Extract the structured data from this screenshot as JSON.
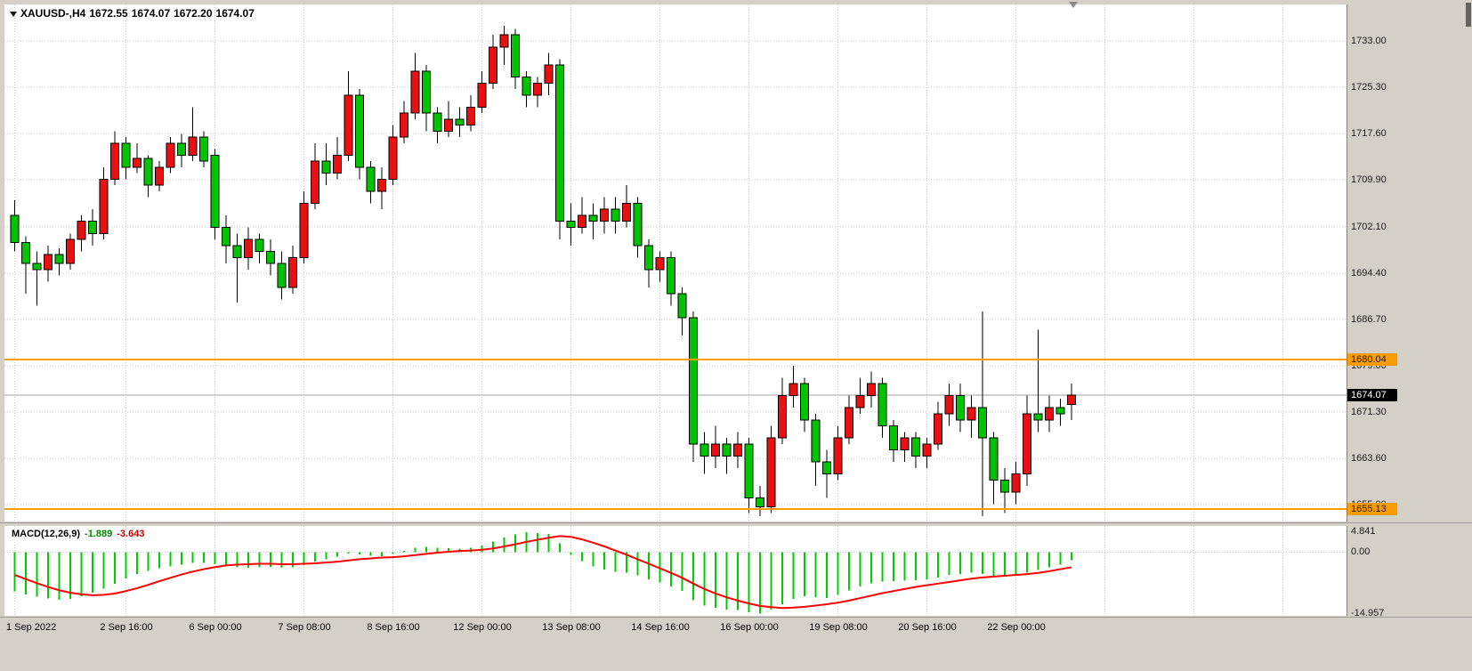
{
  "window": {
    "bg": "#d4d0c8"
  },
  "header": {
    "symbol_period": "XAUUSD-,H4",
    "open": "1672.55",
    "high": "1674.07",
    "low": "1672.20",
    "close": "1674.07"
  },
  "price_axis": {
    "tick_labels": [
      "1733.00",
      "1725.30",
      "1717.60",
      "1709.90",
      "1702.10",
      "1694.40",
      "1686.70",
      "1679.00",
      "1671.30",
      "1663.60",
      "1655.90"
    ],
    "levels": [
      {
        "text": "1680.04",
        "price": 1680.04
      },
      {
        "text": "1655.13",
        "price": 1655.13
      }
    ],
    "bid_tag": {
      "text": "1674.07",
      "price": 1674.07
    },
    "level_color": "#ff9c00"
  },
  "time_axis": {
    "labels": [
      {
        "text": "1 Sep 2022",
        "index": 0
      },
      {
        "text": "2 Sep 16:00",
        "index": 10
      },
      {
        "text": "6 Sep 00:00",
        "index": 18
      },
      {
        "text": "7 Sep 08:00",
        "index": 26
      },
      {
        "text": "8 Sep 16:00",
        "index": 34
      },
      {
        "text": "12 Sep 00:00",
        "index": 42
      },
      {
        "text": "13 Sep 08:00",
        "index": 50
      },
      {
        "text": "14 Sep 16:00",
        "index": 58
      },
      {
        "text": "16 Sep 00:00",
        "index": 66
      },
      {
        "text": "19 Sep 08:00",
        "index": 74
      },
      {
        "text": "20 Sep 16:00",
        "index": 82
      },
      {
        "text": "22 Sep 00:00",
        "index": 90
      }
    ]
  },
  "macd_panel": {
    "title": "MACD(12,26,9)",
    "main_value": "-1.889",
    "signal_value": "-3.643",
    "axis_labels": [
      "4.841",
      "0.00",
      "-14.957"
    ]
  },
  "chart_data": {
    "type": "candlestick",
    "symbol": "XAUUSD-",
    "timeframe": "H4",
    "title": "XAUUSD- H4 with MACD(12,26,9)",
    "bull_color": "#e81010",
    "bear_color": "#00c400",
    "wick_color": "#000000",
    "grid_color": "#c9c9c9",
    "bid_price": 1674.07,
    "bid_line_color": "#a0a0a0",
    "hlines": [
      1680.04,
      1655.13
    ],
    "y_ticks": [
      1733.0,
      1725.3,
      1717.6,
      1709.9,
      1702.1,
      1694.4,
      1686.7,
      1679.0,
      1671.3,
      1663.6,
      1655.9
    ],
    "last_ohlc": {
      "open": 1672.55,
      "high": 1674.07,
      "low": 1672.2,
      "close": 1674.07
    },
    "candles": [
      [
        1704,
        1706.5,
        1698,
        1699.5
      ],
      [
        1699.5,
        1700.5,
        1691,
        1696
      ],
      [
        1696,
        1698,
        1689,
        1695
      ],
      [
        1695,
        1699,
        1693,
        1697.5
      ],
      [
        1697.5,
        1698.5,
        1694,
        1696
      ],
      [
        1696,
        1701,
        1695,
        1700
      ],
      [
        1700,
        1704,
        1698,
        1703
      ],
      [
        1703,
        1705,
        1699,
        1701
      ],
      [
        1701,
        1712,
        1700,
        1710
      ],
      [
        1710,
        1718,
        1709,
        1716
      ],
      [
        1716,
        1717,
        1710,
        1712
      ],
      [
        1712,
        1716,
        1711,
        1713.5
      ],
      [
        1713.5,
        1714,
        1707,
        1709
      ],
      [
        1709,
        1713,
        1708,
        1712
      ],
      [
        1712,
        1717,
        1711,
        1716
      ],
      [
        1716,
        1717.5,
        1712,
        1714
      ],
      [
        1714,
        1722,
        1713,
        1717
      ],
      [
        1717,
        1718,
        1712,
        1713
      ],
      [
        1714,
        1715,
        1700,
        1702
      ],
      [
        1702,
        1704,
        1696,
        1699
      ],
      [
        1699,
        1701,
        1689.5,
        1697
      ],
      [
        1697,
        1702,
        1695,
        1700
      ],
      [
        1700,
        1701,
        1696,
        1698
      ],
      [
        1698,
        1700,
        1694,
        1696
      ],
      [
        1696,
        1698,
        1690,
        1692
      ],
      [
        1692,
        1699,
        1691,
        1697
      ],
      [
        1697,
        1708,
        1696,
        1706
      ],
      [
        1706,
        1716,
        1705,
        1713
      ],
      [
        1713,
        1716,
        1709,
        1711
      ],
      [
        1711,
        1717,
        1710,
        1714
      ],
      [
        1714,
        1728,
        1713,
        1724
      ],
      [
        1724,
        1725,
        1710,
        1712
      ],
      [
        1712,
        1713,
        1706,
        1708
      ],
      [
        1708,
        1712,
        1705,
        1710
      ],
      [
        1710,
        1719,
        1709,
        1717
      ],
      [
        1717,
        1723,
        1716,
        1721
      ],
      [
        1721,
        1731,
        1720,
        1728
      ],
      [
        1728,
        1729,
        1718,
        1721
      ],
      [
        1721,
        1722,
        1716,
        1718
      ],
      [
        1718,
        1723,
        1717,
        1720
      ],
      [
        1720,
        1722,
        1717,
        1719
      ],
      [
        1719,
        1724,
        1718,
        1722
      ],
      [
        1722,
        1728,
        1721,
        1726
      ],
      [
        1726,
        1734,
        1725,
        1732
      ],
      [
        1732,
        1735.5,
        1729,
        1734
      ],
      [
        1734,
        1735,
        1725,
        1727
      ],
      [
        1727,
        1728,
        1722,
        1724
      ],
      [
        1724,
        1727,
        1722,
        1726
      ],
      [
        1726,
        1731,
        1724,
        1729
      ],
      [
        1729,
        1730,
        1700,
        1703
      ],
      [
        1703,
        1706,
        1699,
        1702
      ],
      [
        1702,
        1707,
        1701,
        1704
      ],
      [
        1704,
        1706,
        1700,
        1703
      ],
      [
        1703,
        1707,
        1701,
        1705
      ],
      [
        1705,
        1707,
        1701,
        1703
      ],
      [
        1703,
        1709,
        1702,
        1706
      ],
      [
        1706,
        1707,
        1697,
        1699
      ],
      [
        1699,
        1700,
        1692,
        1695
      ],
      [
        1695,
        1698,
        1693,
        1697
      ],
      [
        1697,
        1698,
        1689,
        1691
      ],
      [
        1691,
        1692,
        1684,
        1687
      ],
      [
        1687,
        1688,
        1663,
        1666
      ],
      [
        1666,
        1668,
        1661,
        1664
      ],
      [
        1664,
        1669,
        1662,
        1666
      ],
      [
        1666,
        1667,
        1661,
        1664
      ],
      [
        1664,
        1668,
        1662,
        1666
      ],
      [
        1666,
        1667,
        1654.5,
        1657
      ],
      [
        1657,
        1659,
        1654,
        1655.5
      ],
      [
        1655.5,
        1669,
        1654.5,
        1667
      ],
      [
        1667,
        1677,
        1666,
        1674
      ],
      [
        1674,
        1679,
        1672,
        1676
      ],
      [
        1676,
        1677,
        1668,
        1670
      ],
      [
        1670,
        1671,
        1659,
        1663
      ],
      [
        1663,
        1665,
        1657,
        1661
      ],
      [
        1661,
        1669,
        1660,
        1667
      ],
      [
        1667,
        1674,
        1666,
        1672
      ],
      [
        1672,
        1677,
        1671,
        1674
      ],
      [
        1674,
        1678,
        1672,
        1676
      ],
      [
        1676,
        1677,
        1667,
        1669
      ],
      [
        1669,
        1670,
        1663,
        1665
      ],
      [
        1665,
        1668,
        1663,
        1667
      ],
      [
        1667,
        1668,
        1662,
        1664
      ],
      [
        1664,
        1667,
        1662,
        1666
      ],
      [
        1666,
        1673,
        1665,
        1671
      ],
      [
        1671,
        1676,
        1669,
        1674
      ],
      [
        1674,
        1676,
        1668,
        1670
      ],
      [
        1670,
        1674,
        1667,
        1672
      ],
      [
        1672,
        1688,
        1654,
        1667
      ],
      [
        1667,
        1668,
        1656,
        1660
      ],
      [
        1660,
        1662,
        1654.5,
        1658
      ],
      [
        1658,
        1663,
        1656,
        1661
      ],
      [
        1661,
        1674,
        1659,
        1671
      ],
      [
        1671,
        1685,
        1668,
        1670
      ],
      [
        1670,
        1674,
        1668,
        1672
      ],
      [
        1672,
        1673.5,
        1669,
        1671
      ],
      [
        1672.55,
        1676,
        1670,
        1674.07
      ]
    ],
    "macd": {
      "hist_color": "#00cc00",
      "signal_color": "#ff0000",
      "range": [
        4.841,
        -14.957
      ],
      "hist": [
        -9.5,
        -10.2,
        -10.8,
        -11.2,
        -11.5,
        -11.3,
        -10.6,
        -9.8,
        -8.8,
        -7.6,
        -6.4,
        -5.3,
        -4.5,
        -3.9,
        -3.4,
        -3.0,
        -2.6,
        -2.6,
        -2.9,
        -3.3,
        -3.7,
        -3.8,
        -3.7,
        -3.6,
        -3.8,
        -3.7,
        -3.1,
        -2.3,
        -1.7,
        -1.1,
        -0.3,
        -0.5,
        -0.9,
        -1.0,
        -0.4,
        0.3,
        1.1,
        1.3,
        1.1,
        1.0,
        0.9,
        1.1,
        1.6,
        2.6,
        3.6,
        4.3,
        4.8,
        4.6,
        4.4,
        2.2,
        -0.6,
        -2.2,
        -3.4,
        -4.2,
        -4.7,
        -4.9,
        -5.6,
        -6.6,
        -7.3,
        -8.3,
        -9.4,
        -11.6,
        -12.9,
        -13.5,
        -13.9,
        -14.0,
        -14.5,
        -14.9,
        -13.9,
        -12.6,
        -11.3,
        -10.6,
        -10.9,
        -11.1,
        -10.3,
        -9.3,
        -8.3,
        -7.5,
        -7.1,
        -7.0,
        -6.9,
        -6.8,
        -6.6,
        -6.1,
        -5.5,
        -5.3,
        -5.0,
        -5.3,
        -5.7,
        -5.9,
        -5.7,
        -4.9,
        -4.3,
        -3.7,
        -3.0,
        -1.889
      ],
      "signal": [
        -5.5,
        -6.5,
        -7.5,
        -8.4,
        -9.2,
        -9.8,
        -10.2,
        -10.4,
        -10.3,
        -10.0,
        -9.4,
        -8.7,
        -7.9,
        -7.0,
        -6.2,
        -5.4,
        -4.7,
        -4.1,
        -3.6,
        -3.2,
        -3.0,
        -2.9,
        -2.8,
        -2.8,
        -2.9,
        -2.9,
        -2.8,
        -2.7,
        -2.5,
        -2.3,
        -2.0,
        -1.7,
        -1.5,
        -1.3,
        -1.2,
        -1.0,
        -0.7,
        -0.4,
        -0.1,
        0.1,
        0.3,
        0.4,
        0.6,
        0.9,
        1.4,
        1.9,
        2.5,
        3.0,
        3.5,
        3.9,
        3.7,
        3.1,
        2.3,
        1.4,
        0.4,
        -0.6,
        -1.7,
        -2.8,
        -3.9,
        -5.0,
        -6.2,
        -7.6,
        -8.9,
        -10.0,
        -10.9,
        -11.7,
        -12.4,
        -13.0,
        -13.3,
        -13.5,
        -13.4,
        -13.2,
        -12.9,
        -12.6,
        -12.2,
        -11.7,
        -11.1,
        -10.5,
        -9.9,
        -9.4,
        -8.9,
        -8.4,
        -8.0,
        -7.6,
        -7.2,
        -6.8,
        -6.4,
        -6.1,
        -5.9,
        -5.7,
        -5.5,
        -5.3,
        -5.0,
        -4.6,
        -4.1,
        -3.643
      ]
    }
  }
}
